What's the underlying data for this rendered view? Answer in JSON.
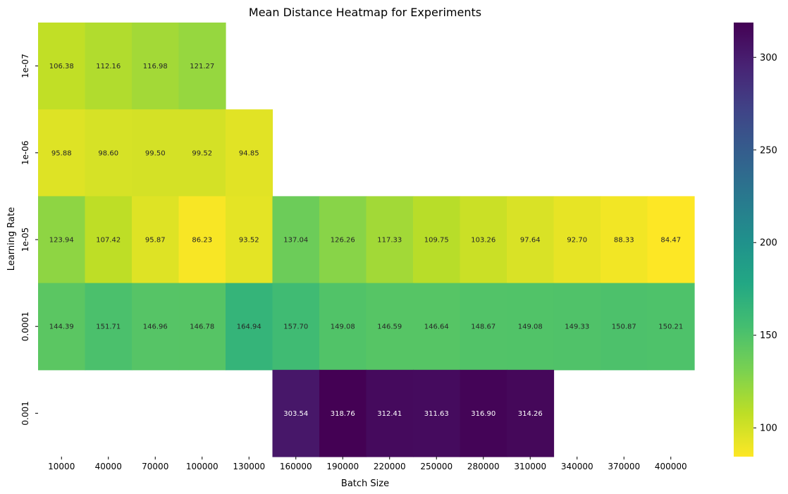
{
  "chart_data": {
    "type": "heatmap",
    "title": "Mean Distance Heatmap for Experiments",
    "xlabel": "Batch Size",
    "ylabel": "Learning Rate",
    "x": [
      "10000",
      "40000",
      "70000",
      "100000",
      "130000",
      "160000",
      "190000",
      "220000",
      "250000",
      "280000",
      "310000",
      "340000",
      "370000",
      "400000"
    ],
    "y": [
      "1e-07",
      "1e-06",
      "1e-05",
      "0.0001",
      "0.001"
    ],
    "values": [
      [
        106.38,
        112.16,
        116.98,
        121.27,
        null,
        null,
        null,
        null,
        null,
        null,
        null,
        null,
        null,
        null
      ],
      [
        95.88,
        98.6,
        99.5,
        99.52,
        94.85,
        null,
        null,
        null,
        null,
        null,
        null,
        null,
        null,
        null
      ],
      [
        123.94,
        107.42,
        95.87,
        86.23,
        93.52,
        137.04,
        126.26,
        117.33,
        109.75,
        103.26,
        97.64,
        92.7,
        88.33,
        84.47
      ],
      [
        144.39,
        151.71,
        146.96,
        146.78,
        164.94,
        157.7,
        149.08,
        146.59,
        146.64,
        148.67,
        149.08,
        149.33,
        150.87,
        150.21
      ],
      [
        null,
        null,
        null,
        null,
        null,
        303.54,
        318.76,
        312.41,
        311.63,
        316.9,
        314.26,
        null,
        null,
        null
      ]
    ],
    "labels": [
      [
        "106.38",
        "112.16",
        "116.98",
        "121.27",
        "",
        "",
        "",
        "",
        "",
        "",
        "",
        "",
        "",
        ""
      ],
      [
        "95.88",
        "98.60",
        "99.50",
        "99.52",
        "94.85",
        "",
        "",
        "",
        "",
        "",
        "",
        "",
        "",
        ""
      ],
      [
        "123.94",
        "107.42",
        "95.87",
        "86.23",
        "93.52",
        "137.04",
        "126.26",
        "117.33",
        "109.75",
        "103.26",
        "97.64",
        "92.70",
        "88.33",
        "84.47"
      ],
      [
        "144.39",
        "151.71",
        "146.96",
        "146.78",
        "164.94",
        "157.70",
        "149.08",
        "146.59",
        "146.64",
        "148.67",
        "149.08",
        "149.33",
        "150.87",
        "150.21"
      ],
      [
        "",
        "",
        "",
        "",
        "",
        "303.54",
        "318.76",
        "312.41",
        "311.63",
        "316.90",
        "314.26",
        "",
        "",
        ""
      ]
    ],
    "colorscale": "viridis_r",
    "color_range": [
      84.47,
      318.76
    ],
    "colorbar_ticks": [
      "100",
      "150",
      "200",
      "250",
      "300"
    ],
    "colorbar_tick_values": [
      100,
      150,
      200,
      250,
      300
    ],
    "grid": false
  }
}
